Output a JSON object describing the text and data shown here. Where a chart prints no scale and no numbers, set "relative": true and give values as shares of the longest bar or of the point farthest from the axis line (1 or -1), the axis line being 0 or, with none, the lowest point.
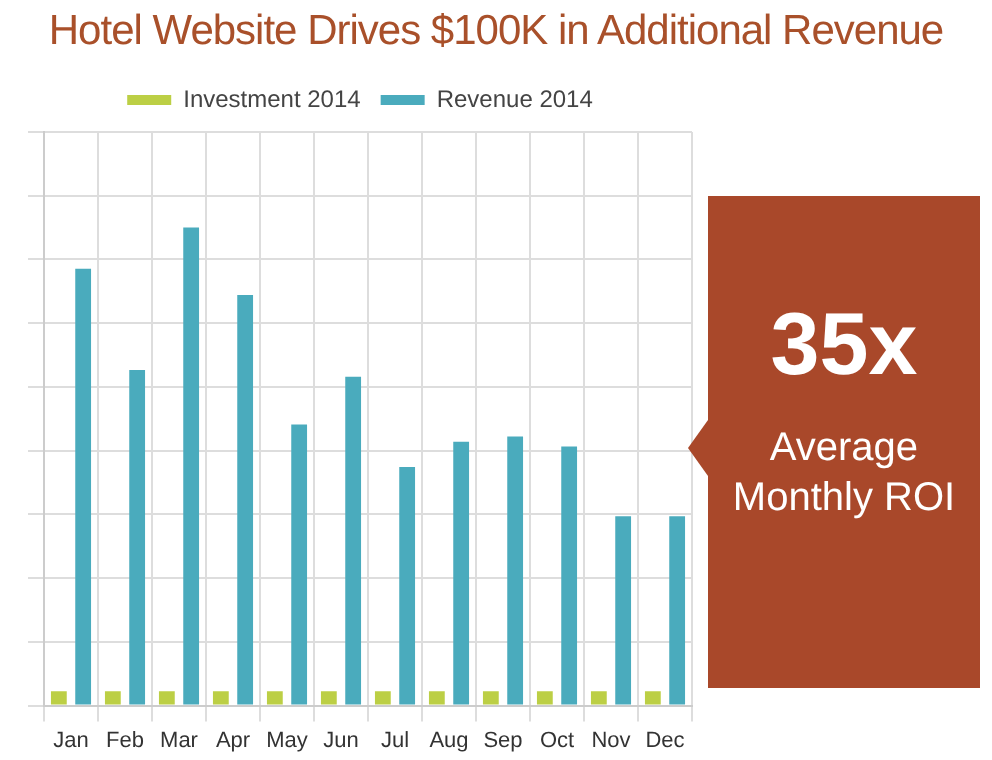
{
  "chart_data": {
    "type": "bar",
    "title": "Hotel Website Drives $100K in Additional Revenue",
    "categories": [
      "Jan",
      "Feb",
      "Mar",
      "Apr",
      "May",
      "Jun",
      "Jul",
      "Aug",
      "Sep",
      "Oct",
      "Nov",
      "Dec"
    ],
    "series": [
      {
        "name": "Investment 2014",
        "color": "#bccf45",
        "values": [
          0.03,
          0.03,
          0.03,
          0.03,
          0.03,
          0.03,
          0.03,
          0.03,
          0.03,
          0.03,
          0.03,
          0.03
        ]
      },
      {
        "name": "Revenue 2014",
        "color": "#4aabbd",
        "values": [
          0.914,
          0.702,
          1,
          0.859,
          0.588,
          0.688,
          0.499,
          0.552,
          0.563,
          0.542,
          0.396,
          0.396
        ]
      }
    ],
    "relative": true,
    "grid": true,
    "legend": "top",
    "annotations": [
      "35x",
      "Average Monthly ROI"
    ]
  }
}
